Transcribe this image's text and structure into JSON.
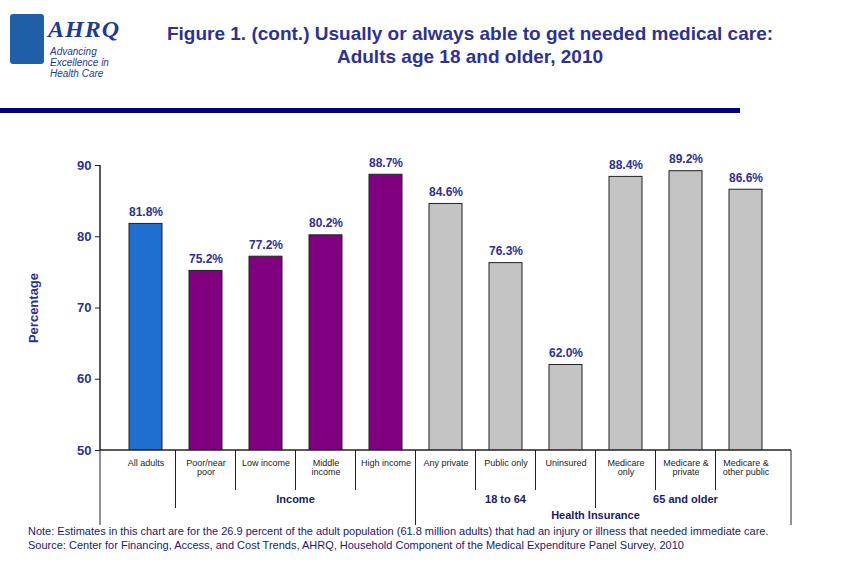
{
  "chart_data": {
    "type": "bar",
    "title": "Figure 1. (cont.) Usually or always able to get needed medical care: Adults age 18 and older, 2010",
    "y_label": "Percentage",
    "categories": [
      "All adults",
      "Poor/near poor",
      "Low income",
      "Middle income",
      "High income",
      "Any private",
      "Public only",
      "Uninsured",
      "Medicare only",
      "Medicare & private",
      "Medicare & other public"
    ],
    "values": [
      81.8,
      75.2,
      77.2,
      80.2,
      88.7,
      84.6,
      76.3,
      62.0,
      88.4,
      89.2,
      86.6
    ],
    "value_labels": [
      "81.8%",
      "75.2%",
      "77.2%",
      "80.2%",
      "88.7%",
      "84.6%",
      "76.3%",
      "62.0%",
      "88.4%",
      "89.2%",
      "86.6%"
    ],
    "colors": [
      "#1e6fd0",
      "#800080",
      "#800080",
      "#800080",
      "#800080",
      "#c4c4c4",
      "#c4c4c4",
      "#c4c4c4",
      "#c4c4c4",
      "#c4c4c4",
      "#c4c4c4"
    ],
    "ylim": [
      50,
      90
    ],
    "yticks": [
      50,
      60,
      70,
      80,
      90
    ],
    "grid": false,
    "data_labels": true,
    "groups": [
      {
        "label": "Income",
        "categories": [
          "Poor/near poor",
          "Low income",
          "Middle income",
          "High income"
        ]
      },
      {
        "label": "18 to 64",
        "categories": [
          "Any private",
          "Public only",
          "Uninsured"
        ]
      },
      {
        "label": "65 and older",
        "categories": [
          "Medicare only",
          "Medicare & private",
          "Medicare & other public"
        ]
      }
    ],
    "supergroups": [
      {
        "label": "Health Insurance",
        "categories": [
          "Any private",
          "Public only",
          "Uninsured",
          "Medicare only",
          "Medicare & private",
          "Medicare & other public"
        ]
      }
    ],
    "note": "Note: Estimates in this chart are for the 26.9 percent of the adult population (61.8 million adults) that had an injury or illness that needed immediate care.",
    "source": "Source: Center for Financing, Access, and Cost Trends, AHRQ, Household Component of the Medical Expenditure Panel Survey, 2010",
    "logo": {
      "name": "AHRQ",
      "tagline": "Advancing Excellence in Health Care"
    }
  }
}
